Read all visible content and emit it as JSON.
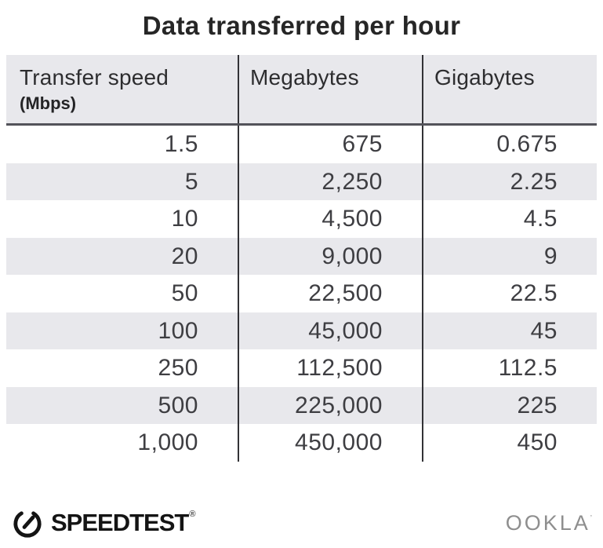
{
  "title": "Data transferred per hour",
  "table": {
    "headers": [
      {
        "label": "Transfer speed",
        "sublabel": "(Mbps)"
      },
      {
        "label": "Megabytes",
        "sublabel": ""
      },
      {
        "label": "Gigabytes",
        "sublabel": ""
      }
    ],
    "rows": [
      [
        "1.5",
        "675",
        "0.675"
      ],
      [
        "5",
        "2,250",
        "2.25"
      ],
      [
        "10",
        "4,500",
        "4.5"
      ],
      [
        "20",
        "9,000",
        "9"
      ],
      [
        "50",
        "22,500",
        "22.5"
      ],
      [
        "100",
        "45,000",
        "45"
      ],
      [
        "250",
        "112,500",
        "112.5"
      ],
      [
        "500",
        "225,000",
        "225"
      ],
      [
        "1,000",
        "450,000",
        "450"
      ]
    ]
  },
  "footer": {
    "speedtest": {
      "label": "SPEEDTEST",
      "mark": "®"
    },
    "ookla": {
      "label": "OOKLA",
      "mark": "’"
    }
  },
  "colors": {
    "header_bg": "#e8e8ec",
    "stripe_bg": "#e8e8ec",
    "header_rule": "#53535a",
    "column_divider": "#323236",
    "title_text": "#262626",
    "data_text": "#3e3e42",
    "speedtest_black": "#141414",
    "ookla_gray": "#8e8e8e"
  },
  "chart_data": {
    "type": "table",
    "title": "Data transferred per hour",
    "columns": [
      "Transfer speed (Mbps)",
      "Megabytes",
      "Gigabytes"
    ],
    "rows": [
      [
        1.5,
        675,
        0.675
      ],
      [
        5,
        2250,
        2.25
      ],
      [
        10,
        4500,
        4.5
      ],
      [
        20,
        9000,
        9
      ],
      [
        50,
        22500,
        22.5
      ],
      [
        100,
        45000,
        45
      ],
      [
        250,
        112500,
        112.5
      ],
      [
        500,
        225000,
        225
      ],
      [
        1000,
        450000,
        450
      ]
    ],
    "layout_hints": {
      "striped_rows": "even 1-based rows shaded",
      "value_alignment": "right",
      "grid": "vertical column dividers only, heavy rule under header"
    }
  }
}
